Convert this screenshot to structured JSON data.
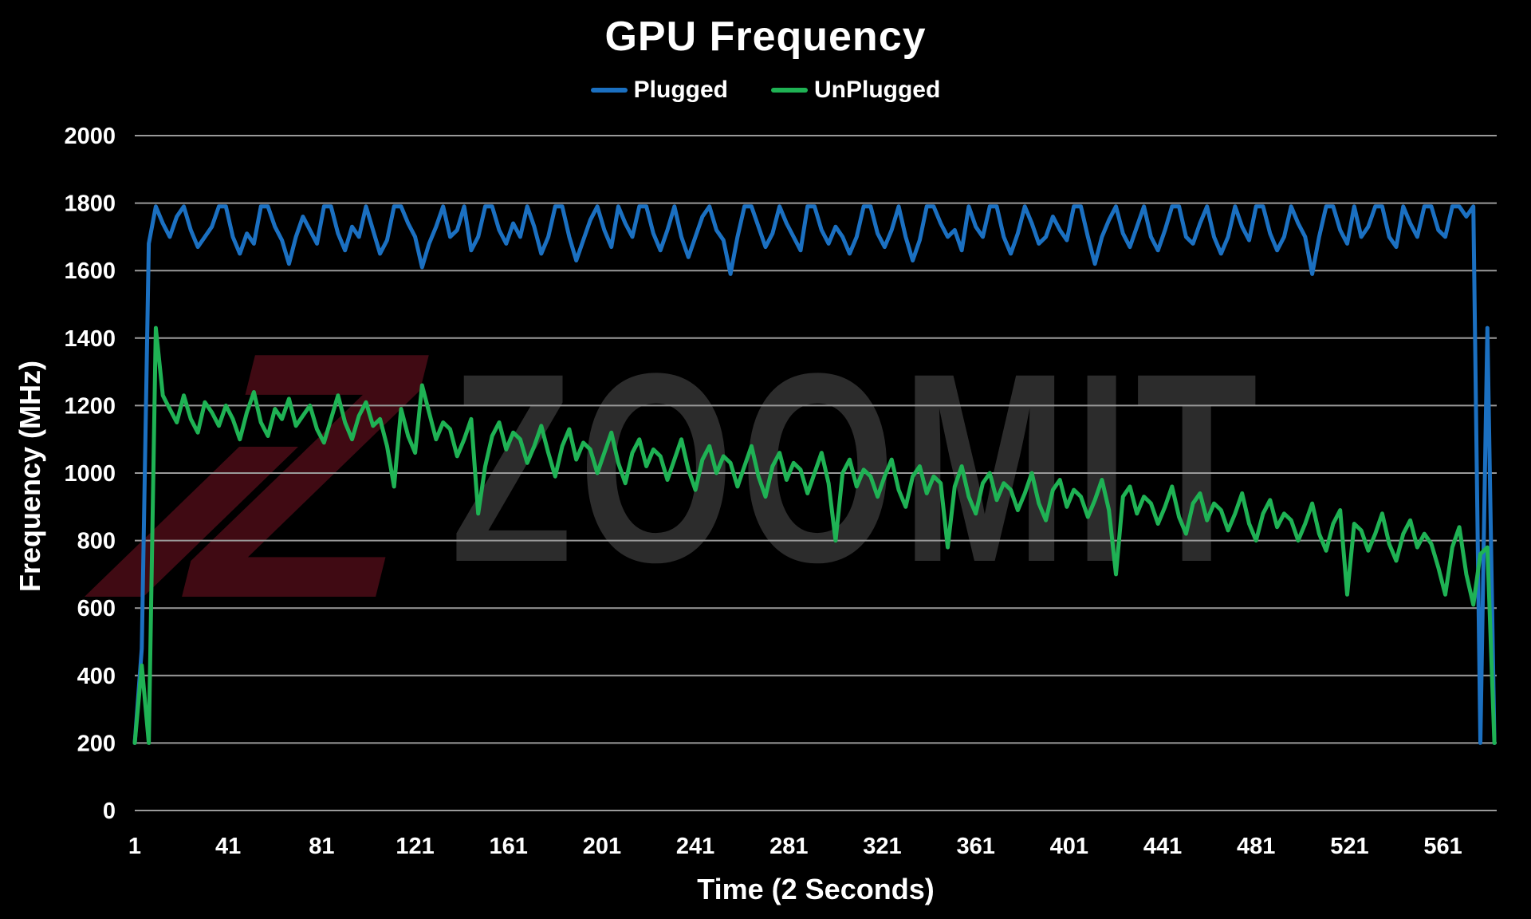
{
  "page": {
    "background": "#000000"
  },
  "chart": {
    "title": "GPU Frequency",
    "y_axis_title": "Frequency (MHz)",
    "x_axis_title": "Time (2 Seconds)",
    "text_color": "#ffffff",
    "grid_color": "#9a9a9a"
  },
  "watermark": {
    "text": "ZOOMIT",
    "logo_letter": "Z",
    "text_color": "#2c2c2c",
    "logo_color": "#400a13"
  },
  "chart_data": {
    "type": "line",
    "title": "GPU Frequency",
    "xlabel": "Time (2 Seconds)",
    "ylabel": "Frequency (MHz)",
    "legend_position": "top",
    "grid": "horizontal",
    "x_ticks": [
      1,
      41,
      81,
      121,
      161,
      201,
      241,
      281,
      321,
      361,
      401,
      441,
      481,
      521,
      561
    ],
    "y_ticks": [
      0,
      200,
      400,
      600,
      800,
      1000,
      1200,
      1400,
      1600,
      1800,
      2000
    ],
    "ylim": [
      0,
      2000
    ],
    "xlim": [
      1,
      584
    ],
    "x_start": 1,
    "x_step": 3,
    "series": [
      {
        "name": "Plugged",
        "color": "#1b70c1",
        "values": [
          200,
          480,
          1680,
          1790,
          1740,
          1700,
          1760,
          1790,
          1720,
          1670,
          1700,
          1730,
          1790,
          1790,
          1700,
          1650,
          1710,
          1680,
          1790,
          1790,
          1730,
          1690,
          1620,
          1700,
          1760,
          1720,
          1680,
          1790,
          1790,
          1710,
          1660,
          1730,
          1700,
          1790,
          1720,
          1650,
          1690,
          1790,
          1790,
          1740,
          1700,
          1610,
          1680,
          1730,
          1790,
          1700,
          1720,
          1790,
          1660,
          1700,
          1790,
          1790,
          1720,
          1680,
          1740,
          1700,
          1790,
          1730,
          1650,
          1700,
          1790,
          1790,
          1700,
          1630,
          1690,
          1750,
          1790,
          1720,
          1670,
          1790,
          1740,
          1700,
          1790,
          1790,
          1710,
          1660,
          1720,
          1790,
          1700,
          1640,
          1700,
          1760,
          1790,
          1720,
          1690,
          1590,
          1700,
          1790,
          1790,
          1730,
          1670,
          1710,
          1790,
          1740,
          1700,
          1660,
          1790,
          1790,
          1720,
          1680,
          1730,
          1700,
          1650,
          1700,
          1790,
          1790,
          1710,
          1670,
          1720,
          1790,
          1700,
          1630,
          1690,
          1790,
          1790,
          1740,
          1700,
          1720,
          1660,
          1790,
          1730,
          1700,
          1790,
          1790,
          1700,
          1650,
          1710,
          1790,
          1740,
          1680,
          1700,
          1760,
          1720,
          1690,
          1790,
          1790,
          1700,
          1620,
          1700,
          1750,
          1790,
          1710,
          1670,
          1730,
          1790,
          1700,
          1660,
          1720,
          1790,
          1790,
          1700,
          1680,
          1740,
          1790,
          1700,
          1650,
          1700,
          1790,
          1730,
          1690,
          1790,
          1790,
          1710,
          1660,
          1700,
          1790,
          1740,
          1700,
          1590,
          1700,
          1790,
          1790,
          1720,
          1680,
          1790,
          1700,
          1730,
          1790,
          1790,
          1700,
          1670,
          1790,
          1740,
          1700,
          1790,
          1790,
          1720,
          1700,
          1790,
          1790,
          1760,
          1790,
          200,
          1430,
          200
        ]
      },
      {
        "name": "UnPlugged",
        "color": "#1fb254",
        "values": [
          200,
          430,
          200,
          1430,
          1230,
          1190,
          1150,
          1230,
          1160,
          1120,
          1210,
          1180,
          1140,
          1200,
          1160,
          1100,
          1180,
          1240,
          1150,
          1110,
          1190,
          1160,
          1220,
          1140,
          1170,
          1200,
          1130,
          1090,
          1160,
          1230,
          1150,
          1100,
          1170,
          1210,
          1140,
          1160,
          1080,
          960,
          1190,
          1110,
          1060,
          1260,
          1180,
          1100,
          1150,
          1130,
          1050,
          1100,
          1160,
          880,
          1020,
          1110,
          1150,
          1070,
          1120,
          1100,
          1030,
          1080,
          1140,
          1060,
          990,
          1080,
          1130,
          1040,
          1090,
          1070,
          1000,
          1060,
          1120,
          1030,
          970,
          1060,
          1100,
          1020,
          1070,
          1050,
          980,
          1040,
          1100,
          1010,
          950,
          1040,
          1080,
          1000,
          1050,
          1030,
          960,
          1020,
          1080,
          990,
          930,
          1020,
          1060,
          980,
          1030,
          1010,
          940,
          1000,
          1060,
          970,
          800,
          1000,
          1040,
          960,
          1010,
          990,
          930,
          990,
          1040,
          950,
          900,
          990,
          1020,
          940,
          990,
          970,
          780,
          960,
          1020,
          930,
          880,
          970,
          1000,
          920,
          970,
          950,
          890,
          940,
          1000,
          910,
          860,
          950,
          980,
          900,
          950,
          930,
          870,
          920,
          980,
          890,
          700,
          930,
          960,
          880,
          930,
          910,
          850,
          900,
          960,
          870,
          820,
          910,
          940,
          860,
          910,
          890,
          830,
          880,
          940,
          850,
          800,
          880,
          920,
          840,
          880,
          860,
          800,
          850,
          910,
          820,
          770,
          850,
          890,
          640,
          850,
          830,
          770,
          820,
          880,
          790,
          740,
          820,
          860,
          780,
          820,
          790,
          720,
          640,
          780,
          840,
          700,
          610,
          760,
          780,
          200
        ]
      }
    ]
  }
}
